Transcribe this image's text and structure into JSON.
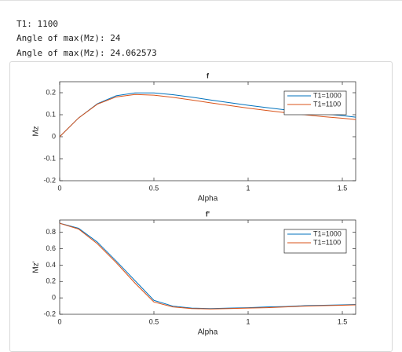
{
  "output_lines": [
    "T1: 1100",
    "Angle of max(Mz): 24",
    "Angle of max(Mz): 24.062573"
  ],
  "chart_data": [
    {
      "type": "line",
      "title": "f",
      "xlabel": "Alpha",
      "ylabel": "Mz",
      "x": [
        0,
        0.1,
        0.2,
        0.3,
        0.4,
        0.5,
        0.6,
        0.7,
        0.8,
        0.9,
        1.0,
        1.1,
        1.2,
        1.3,
        1.4,
        1.5,
        1.5708
      ],
      "xlim": [
        0,
        1.5708
      ],
      "xticks": [
        0,
        0.5,
        1,
        1.5
      ],
      "ylim": [
        -0.2,
        0.25
      ],
      "yticks": [
        -0.2,
        -0.1,
        0,
        0.1,
        0.2
      ],
      "legend": "northeast",
      "series": [
        {
          "name": "T1=1000",
          "color": "#0072bd",
          "values": [
            0,
            0.085,
            0.15,
            0.186,
            0.199,
            0.199,
            0.191,
            0.18,
            0.167,
            0.155,
            0.143,
            0.132,
            0.122,
            0.113,
            0.104,
            0.096,
            0.089
          ]
        },
        {
          "name": "T1=1100",
          "color": "#d95319",
          "values": [
            0,
            0.085,
            0.148,
            0.181,
            0.192,
            0.189,
            0.179,
            0.167,
            0.154,
            0.142,
            0.13,
            0.119,
            0.109,
            0.1,
            0.091,
            0.084,
            0.078
          ]
        }
      ]
    },
    {
      "type": "line",
      "title": "f'",
      "xlabel": "Alpha",
      "ylabel": "Mz'",
      "x": [
        0,
        0.1,
        0.2,
        0.3,
        0.4,
        0.5,
        0.6,
        0.7,
        0.8,
        0.9,
        1.0,
        1.1,
        1.2,
        1.3,
        1.4,
        1.5,
        1.5708
      ],
      "xlim": [
        0,
        1.5708
      ],
      "xticks": [
        0,
        0.5,
        1,
        1.5
      ],
      "ylim": [
        -0.2,
        0.95
      ],
      "yticks": [
        -0.2,
        0,
        0.2,
        0.4,
        0.6,
        0.8
      ],
      "legend": "northeast",
      "series": [
        {
          "name": "T1=1000",
          "color": "#0072bd",
          "values": [
            0.91,
            0.85,
            0.68,
            0.45,
            0.21,
            -0.03,
            -0.1,
            -0.125,
            -0.13,
            -0.125,
            -0.12,
            -0.11,
            -0.105,
            -0.095,
            -0.09,
            -0.085,
            -0.08
          ]
        },
        {
          "name": "T1=1100",
          "color": "#d95319",
          "values": [
            0.91,
            0.84,
            0.66,
            0.43,
            0.18,
            -0.05,
            -0.11,
            -0.13,
            -0.135,
            -0.13,
            -0.125,
            -0.12,
            -0.11,
            -0.1,
            -0.095,
            -0.09,
            -0.085
          ]
        }
      ]
    }
  ]
}
